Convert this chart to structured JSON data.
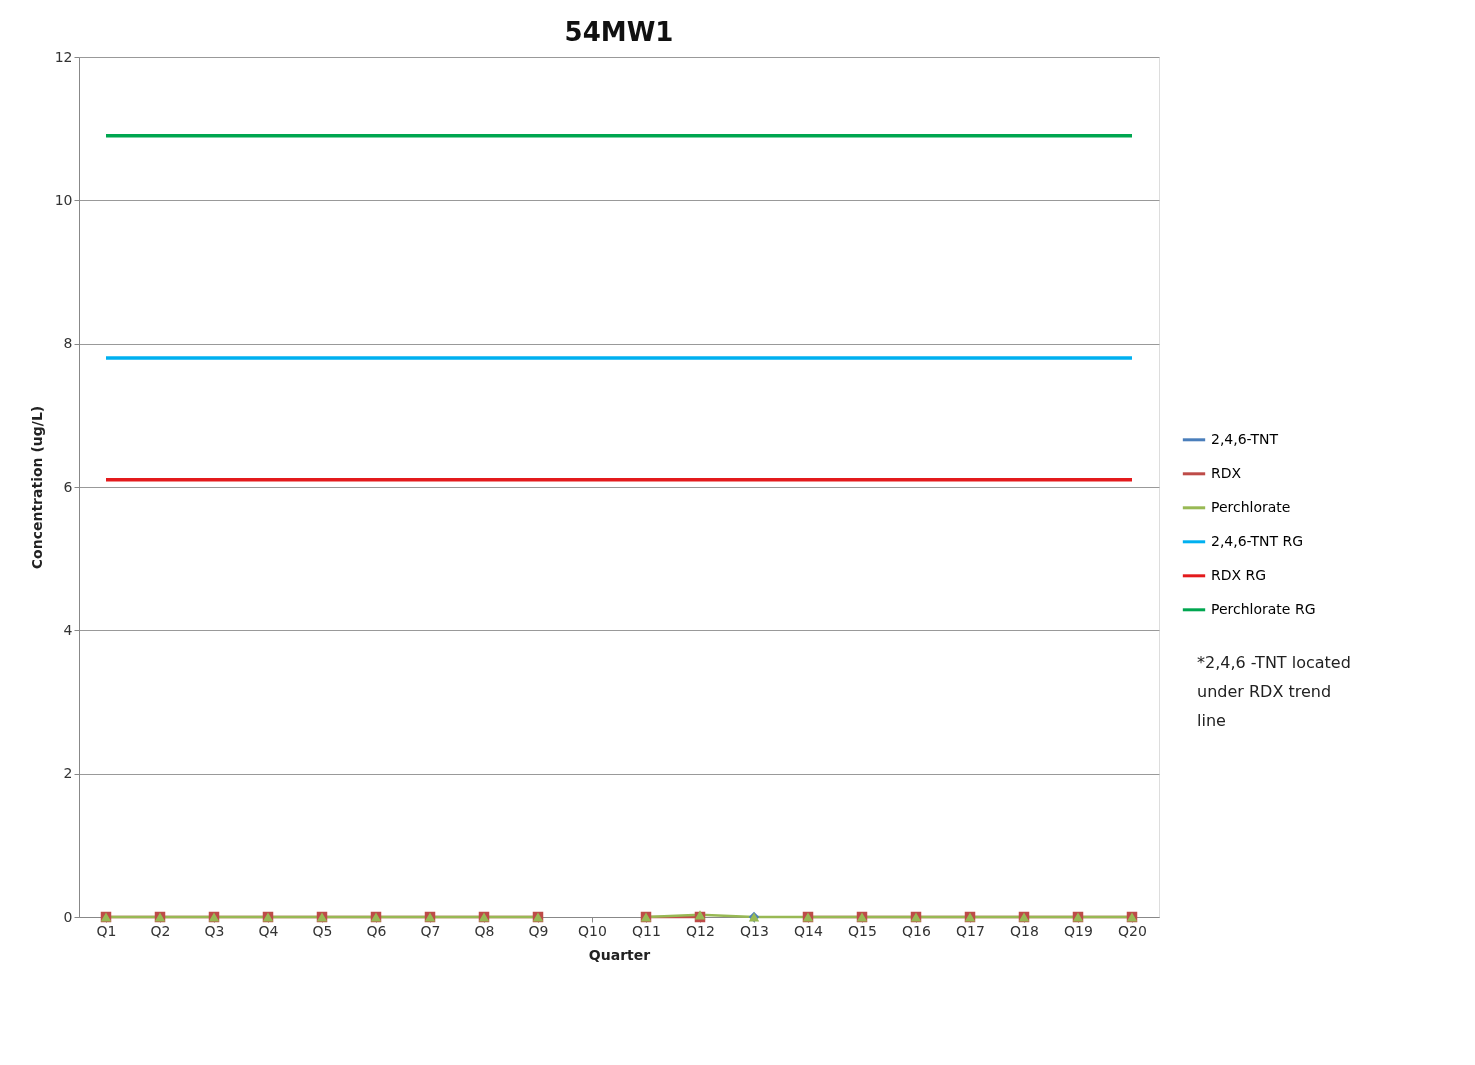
{
  "chart_data": {
    "type": "line",
    "title": "54MW1",
    "xlabel": "Quarter",
    "ylabel": "Concentration (ug/L)",
    "categories": [
      "Q1",
      "Q2",
      "Q3",
      "Q4",
      "Q5",
      "Q6",
      "Q7",
      "Q8",
      "Q9",
      "Q10",
      "Q11",
      "Q12",
      "Q13",
      "Q14",
      "Q15",
      "Q16",
      "Q17",
      "Q18",
      "Q19",
      "Q20"
    ],
    "series": [
      {
        "name": "2,4,6-TNT",
        "color": "#4a7ebb",
        "marker": "diamond",
        "values": [
          null,
          null,
          null,
          null,
          null,
          null,
          null,
          null,
          null,
          null,
          null,
          null,
          0,
          null,
          null,
          null,
          null,
          null,
          null,
          null
        ]
      },
      {
        "name": "RDX",
        "color": "#be4b48",
        "marker": "square",
        "values": [
          0,
          0,
          0,
          0,
          0,
          0,
          0,
          0,
          0,
          null,
          0,
          0,
          null,
          0,
          0,
          0,
          0,
          0,
          0,
          0
        ]
      },
      {
        "name": "Perchlorate",
        "color": "#98b954",
        "marker": "triangle",
        "values": [
          0,
          0,
          0,
          0,
          0,
          0,
          0,
          0,
          0,
          null,
          0,
          0.03,
          0,
          0,
          0,
          0,
          0,
          0,
          0,
          0
        ]
      },
      {
        "name": "2,4,6-TNT RG",
        "color": "#00b0f0",
        "marker": "none",
        "values": [
          7.8,
          7.8,
          7.8,
          7.8,
          7.8,
          7.8,
          7.8,
          7.8,
          7.8,
          7.8,
          7.8,
          7.8,
          7.8,
          7.8,
          7.8,
          7.8,
          7.8,
          7.8,
          7.8,
          7.8
        ]
      },
      {
        "name": "RDX RG",
        "color": "#e31a1c",
        "marker": "none",
        "values": [
          6.1,
          6.1,
          6.1,
          6.1,
          6.1,
          6.1,
          6.1,
          6.1,
          6.1,
          6.1,
          6.1,
          6.1,
          6.1,
          6.1,
          6.1,
          6.1,
          6.1,
          6.1,
          6.1,
          6.1
        ]
      },
      {
        "name": "Perchlorate RG",
        "color": "#00a650",
        "marker": "none",
        "values": [
          10.9,
          10.9,
          10.9,
          10.9,
          10.9,
          10.9,
          10.9,
          10.9,
          10.9,
          10.9,
          10.9,
          10.9,
          10.9,
          10.9,
          10.9,
          10.9,
          10.9,
          10.9,
          10.9,
          10.9
        ]
      }
    ],
    "ylim": [
      0,
      12
    ],
    "yticks": [
      0,
      2,
      4,
      6,
      8,
      10,
      12
    ],
    "grid": "y",
    "legend": "right",
    "annotations": [
      "*2,4,6 -TNT located under RDX trend line"
    ]
  }
}
